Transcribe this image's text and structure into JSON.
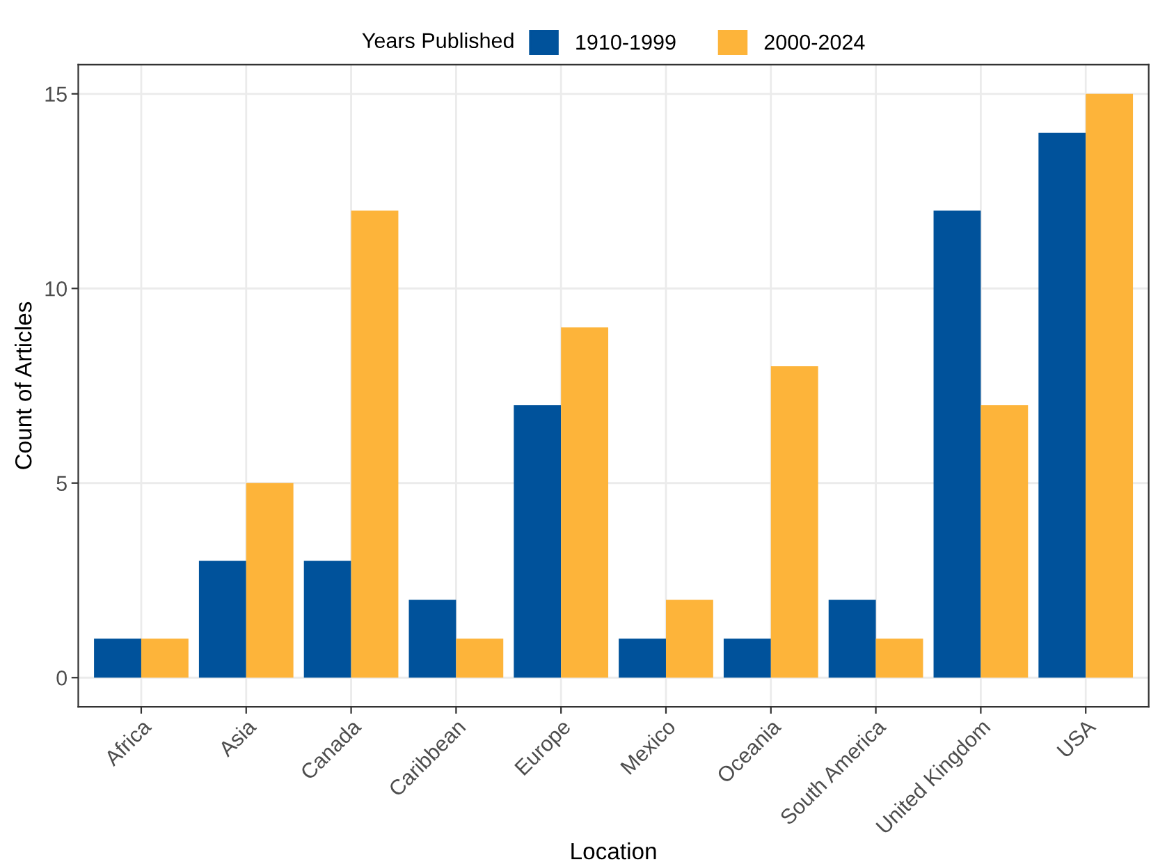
{
  "chart_data": {
    "type": "bar",
    "xlabel": "Location",
    "ylabel": "Count of Articles",
    "legend_title": "Years Published",
    "categories": [
      "Africa",
      "Asia",
      "Canada",
      "Caribbean",
      "Europe",
      "Mexico",
      "Oceania",
      "South America",
      "United Kingdom",
      "USA"
    ],
    "series": [
      {
        "name": "1910-1999",
        "color": "#00529b",
        "values": [
          1,
          3,
          3,
          2,
          7,
          1,
          1,
          2,
          12,
          14
        ]
      },
      {
        "name": "2000-2024",
        "color": "#fdb43a",
        "values": [
          1,
          5,
          12,
          1,
          9,
          2,
          8,
          1,
          7,
          15
        ]
      }
    ],
    "ylim": [
      -0.75,
      15.75
    ],
    "yticks": [
      0,
      5,
      10,
      15
    ],
    "grid": true,
    "legend": "top"
  }
}
